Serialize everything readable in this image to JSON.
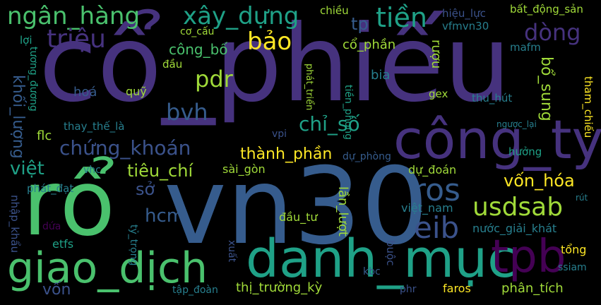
{
  "words": {
    "co_phieu": "cổ_phiếu",
    "vn30": "vn30",
    "ro": "rổ",
    "cong_ty": "công_ty",
    "danh_muc": "danh_mục",
    "giao_dich": "giao_dịch",
    "tpb": "tpb",
    "ngan_hang": "ngân_hàng",
    "xay_dung": "xây_dựng",
    "tien": "tiền",
    "trieu": "triệu",
    "dong": "dòng",
    "bao": "bảo",
    "ros": "ros",
    "eib": "eib",
    "usdsab": "usdsab",
    "chung_khoan": "chứng_khoán",
    "chi_so": "chỉ_số",
    "pdr": "pdr",
    "bvh": "bvh",
    "viet": "việt",
    "tieu_chi": "tiêu_chí",
    "thanh_phan": "thành_phần",
    "von_hoa": "vốn_hóa",
    "cong_bo": "công_bố",
    "khoi_luong": "khối_lượng",
    "hcm": "hcm",
    "so": "sở",
    "tp": "tp",
    "hieu_luc": "hiệu_lực",
    "bat_dong_san": "bất_động_sản",
    "chieu": "chiều",
    "vfmvn30": "vfmvn30",
    "co_cau": "cơ_cấu",
    "co_phan": "cổ_phần",
    "mafm": "mafm",
    "loi": "lợi",
    "tuong_duong": "tương_đương",
    "dau": "đầu",
    "phat_trien": "phát_triển",
    "ruou": "rượu",
    "bia": "bia",
    "hoa": "hoá",
    "quy": "quỹ",
    "tien_phong": "tiền_phong",
    "gex": "gex",
    "thu_hut": "thu_hút",
    "bo_sung": "bổ_sung",
    "tham_chieu": "tham_chiếu",
    "flc": "flc",
    "thay_the_la": "thay_thế_là",
    "vpi": "vpi",
    "nguoc_lai": "ngược_lại",
    "huong": "hưởng",
    "du_phong": "dự_phòng",
    "vhc": "vhc",
    "sai_gon": "sài_gòn",
    "du_doan": "dự_đoán",
    "phat_dat": "phát_đạt",
    "rut": "rút",
    "viet_nam": "việt_nam",
    "nhap_khau": "nhập_khẩu",
    "dua": "dứa",
    "ty_trong": "tỷ_trọng",
    "dau_tu": "đầu_tư",
    "lan_luot": "lần_lượt",
    "nuoc_giai_khat": "nước_giải_khát",
    "etfs": "etfs",
    "xuat": "xuất",
    "tong": "tổng",
    "ssiam": "ssiam",
    "kbc": "kbc",
    "buoc": "buộc",
    "von": "vốn",
    "tap_doan": "tập_đoàn",
    "thi_truong_ky": "thị_trường_kỳ",
    "phr": "phr",
    "faros": "faros",
    "phan_tich": "phân_tích"
  }
}
